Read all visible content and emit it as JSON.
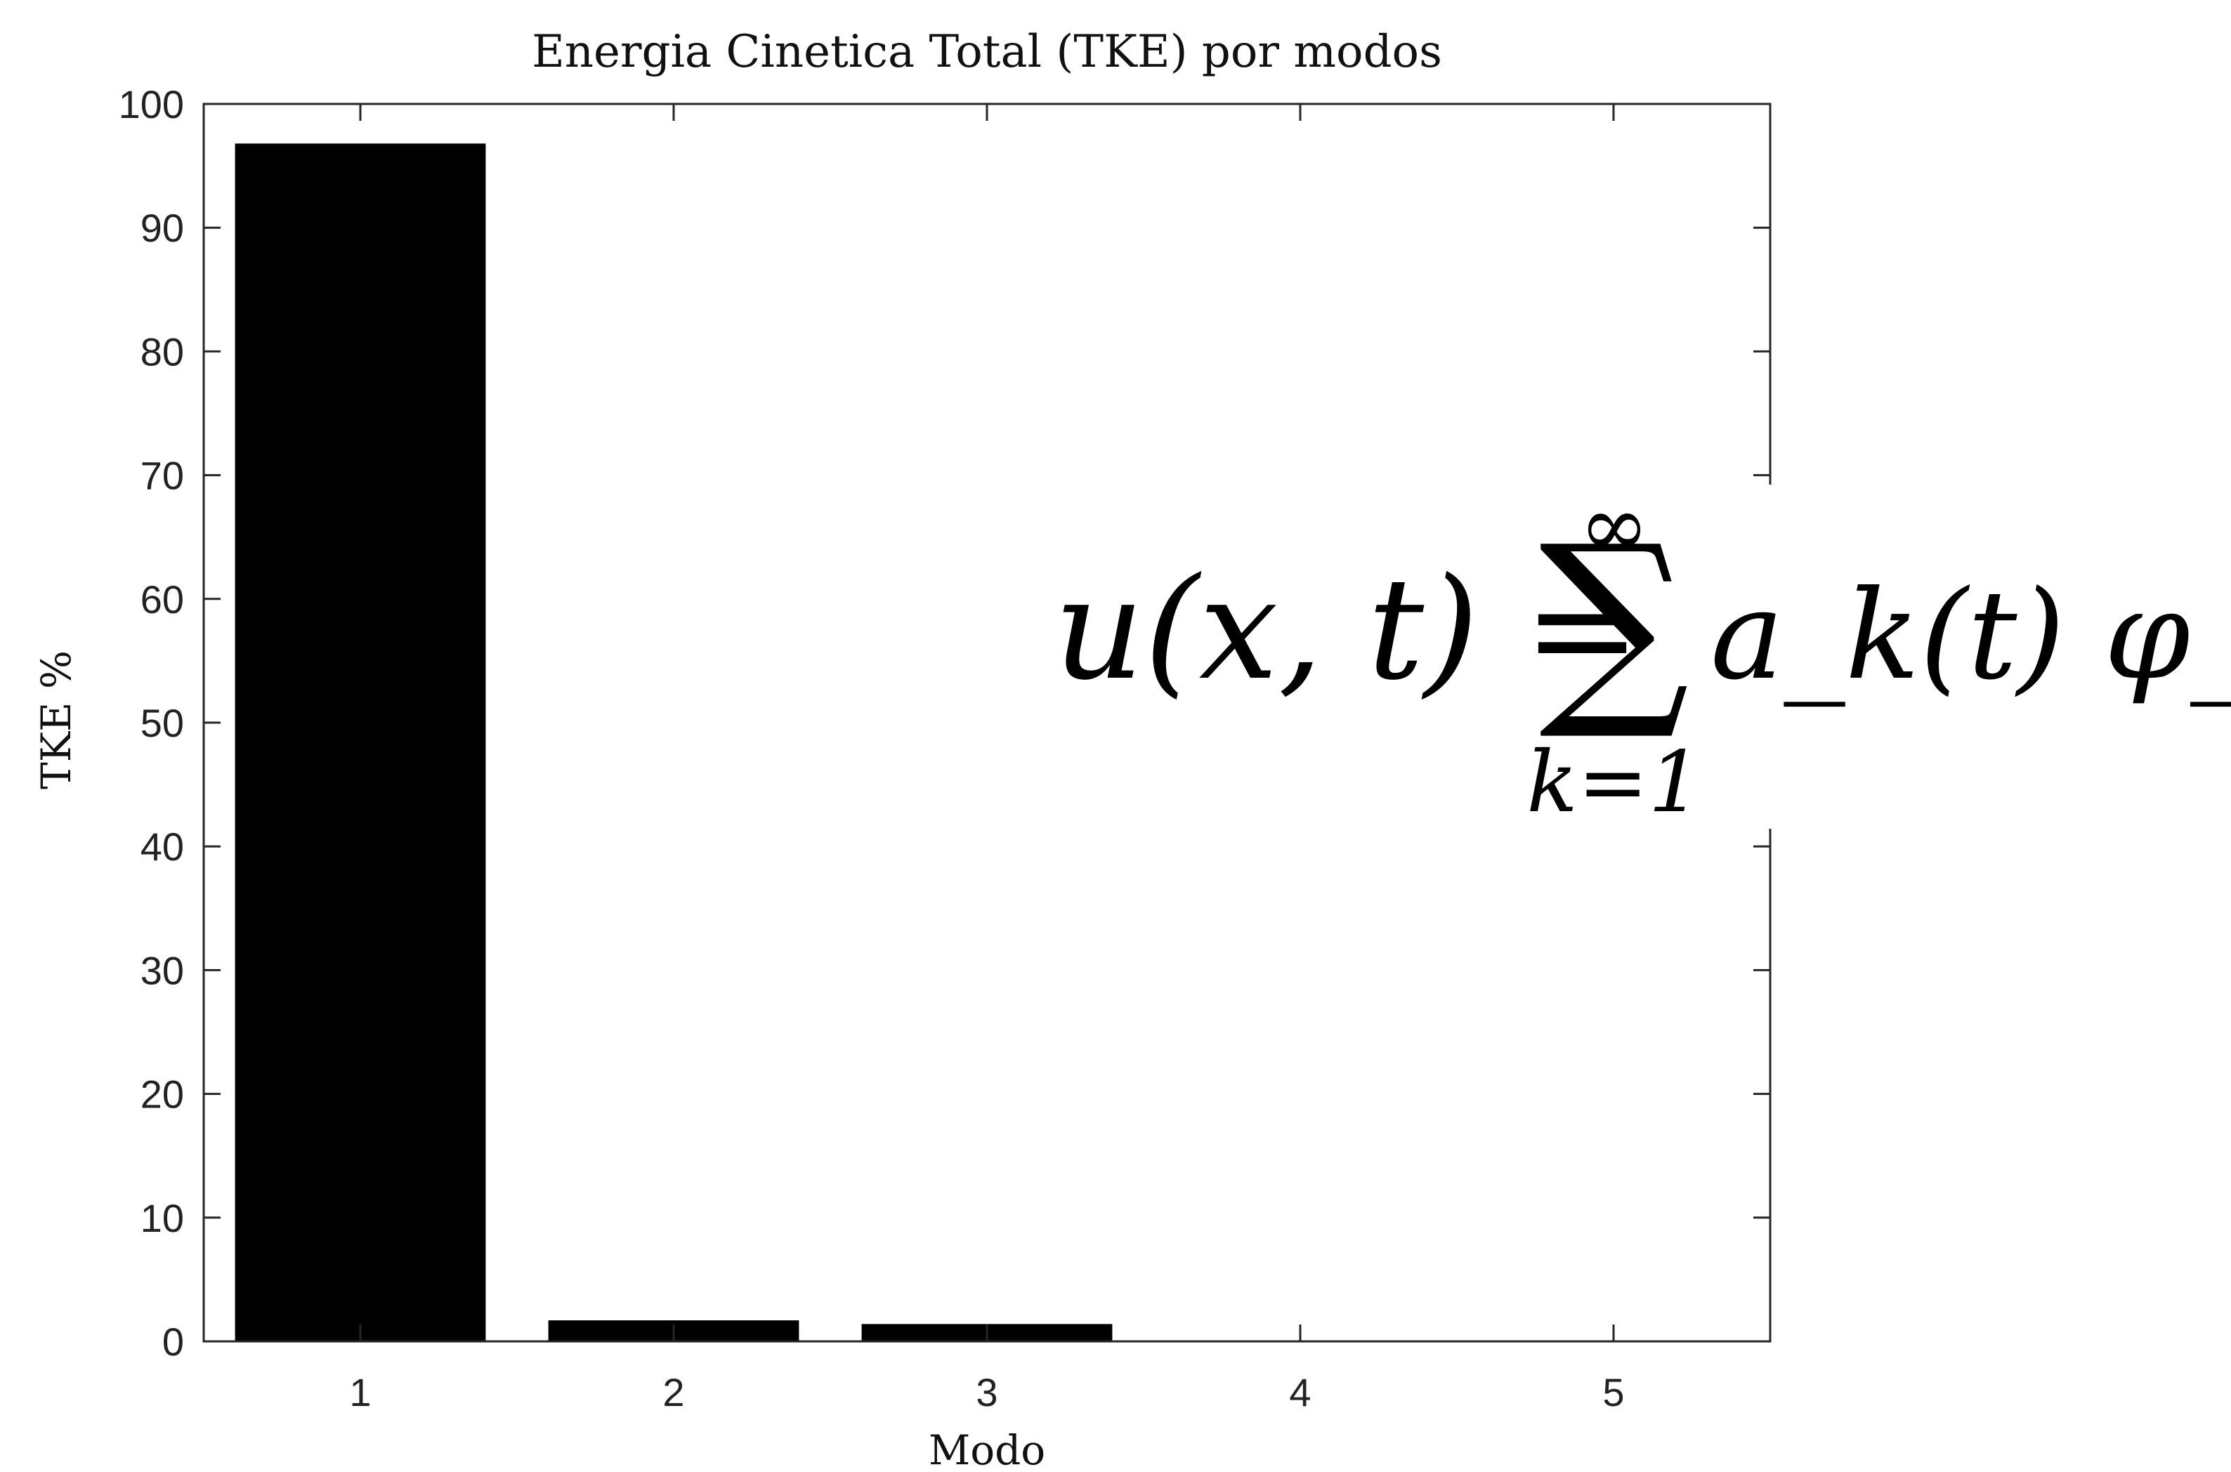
{
  "chart_data": {
    "type": "bar",
    "title": "Energia Cinetica Total (TKE) por modos",
    "xlabel": "Modo",
    "ylabel": "TKE %",
    "categories": [
      "1",
      "2",
      "3",
      "4",
      "5"
    ],
    "values": [
      96.8,
      1.7,
      1.4,
      0,
      0
    ],
    "ylim": [
      0,
      100
    ],
    "xlim": [
      0.5,
      5.5
    ],
    "yticks": [
      "0",
      "10",
      "20",
      "30",
      "40",
      "50",
      "60",
      "70",
      "80",
      "90",
      "100"
    ],
    "grid": false,
    "bar_color": "#000000",
    "box_color": "#262626"
  },
  "equation": {
    "lhs": "u(x, t) =",
    "sum_symbol": "∑",
    "upper_limit": "∞",
    "lower_limit": "k=1",
    "rhs": "a_k(t) φ_k(x)"
  }
}
